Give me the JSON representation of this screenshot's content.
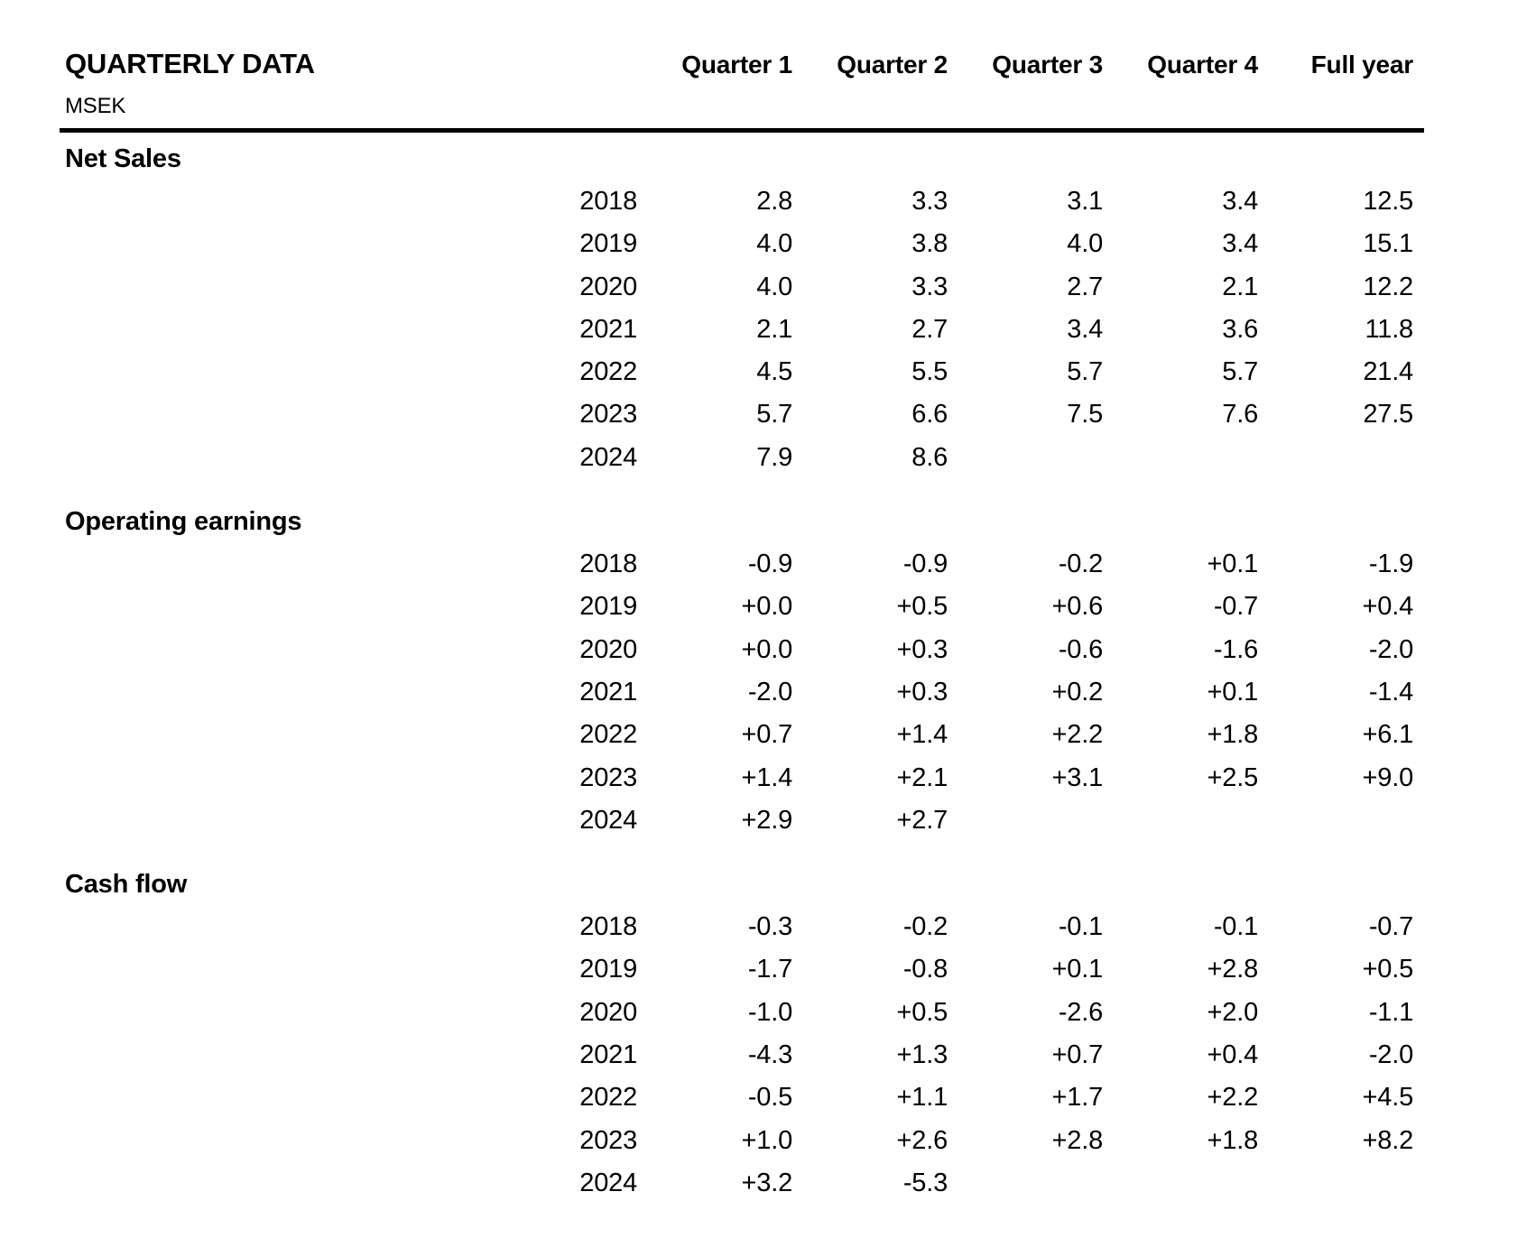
{
  "header": {
    "title": "QUARTERLY DATA",
    "subtitle": "MSEK",
    "columns": [
      "Quarter 1",
      "Quarter 2",
      "Quarter 3",
      "Quarter 4",
      "Full year"
    ]
  },
  "sections": [
    {
      "label": "Net Sales",
      "rows": [
        {
          "year": "2018",
          "values": [
            "2.8",
            "3.3",
            "3.1",
            "3.4",
            "12.5"
          ]
        },
        {
          "year": "2019",
          "values": [
            "4.0",
            "3.8",
            "4.0",
            "3.4",
            "15.1"
          ]
        },
        {
          "year": "2020",
          "values": [
            "4.0",
            "3.3",
            "2.7",
            "2.1",
            "12.2"
          ]
        },
        {
          "year": "2021",
          "values": [
            "2.1",
            "2.7",
            "3.4",
            "3.6",
            "11.8"
          ]
        },
        {
          "year": "2022",
          "values": [
            "4.5",
            "5.5",
            "5.7",
            "5.7",
            "21.4"
          ]
        },
        {
          "year": "2023",
          "values": [
            "5.7",
            "6.6",
            "7.5",
            "7.6",
            "27.5"
          ]
        },
        {
          "year": "2024",
          "values": [
            "7.9",
            "8.6"
          ]
        }
      ]
    },
    {
      "label": "Operating earnings",
      "rows": [
        {
          "year": "2018",
          "values": [
            "-0.9",
            "-0.9",
            "-0.2",
            "+0.1",
            "-1.9"
          ]
        },
        {
          "year": "2019",
          "values": [
            "+0.0",
            "+0.5",
            "+0.6",
            "-0.7",
            "+0.4"
          ]
        },
        {
          "year": "2020",
          "values": [
            "+0.0",
            "+0.3",
            "-0.6",
            "-1.6",
            "-2.0"
          ]
        },
        {
          "year": "2021",
          "values": [
            "-2.0",
            "+0.3",
            "+0.2",
            "+0.1",
            "-1.4"
          ]
        },
        {
          "year": "2022",
          "values": [
            "+0.7",
            "+1.4",
            "+2.2",
            "+1.8",
            "+6.1"
          ]
        },
        {
          "year": "2023",
          "values": [
            "+1.4",
            "+2.1",
            "+3.1",
            "+2.5",
            "+9.0"
          ]
        },
        {
          "year": "2024",
          "values": [
            "+2.9",
            "+2.7"
          ]
        }
      ]
    },
    {
      "label": "Cash flow",
      "rows": [
        {
          "year": "2018",
          "values": [
            "-0.3",
            "-0.2",
            "-0.1",
            "-0.1",
            "-0.7"
          ]
        },
        {
          "year": "2019",
          "values": [
            "-1.7",
            "-0.8",
            "+0.1",
            "+2.8",
            "+0.5"
          ]
        },
        {
          "year": "2020",
          "values": [
            "-1.0",
            "+0.5",
            "-2.6",
            "+2.0",
            "-1.1"
          ]
        },
        {
          "year": "2021",
          "values": [
            "-4.3",
            "+1.3",
            "+0.7",
            "+0.4",
            "-2.0"
          ]
        },
        {
          "year": "2022",
          "values": [
            "-0.5",
            "+1.1",
            "+1.7",
            "+2.2",
            "+4.5"
          ]
        },
        {
          "year": "2023",
          "values": [
            "+1.0",
            "+2.6",
            "+2.8",
            "+1.8",
            "+8.2"
          ]
        },
        {
          "year": "2024",
          "values": [
            "+3.2",
            "-5.3"
          ]
        }
      ]
    }
  ],
  "colors": {
    "text": "#000000",
    "background": "#ffffff",
    "rule": "#000000"
  },
  "chart_data": {
    "type": "table",
    "title": "QUARTERLY DATA",
    "unit": "MSEK",
    "columns": [
      "Quarter 1",
      "Quarter 2",
      "Quarter 3",
      "Quarter 4",
      "Full year"
    ],
    "sections": [
      {
        "name": "Net Sales",
        "years": [
          2018,
          2019,
          2020,
          2021,
          2022,
          2023,
          2024
        ],
        "rows": [
          [
            2.8,
            3.3,
            3.1,
            3.4,
            12.5
          ],
          [
            4.0,
            3.8,
            4.0,
            3.4,
            15.1
          ],
          [
            4.0,
            3.3,
            2.7,
            2.1,
            12.2
          ],
          [
            2.1,
            2.7,
            3.4,
            3.6,
            11.8
          ],
          [
            4.5,
            5.5,
            5.7,
            5.7,
            21.4
          ],
          [
            5.7,
            6.6,
            7.5,
            7.6,
            27.5
          ],
          [
            7.9,
            8.6,
            null,
            null,
            null
          ]
        ]
      },
      {
        "name": "Operating earnings",
        "years": [
          2018,
          2019,
          2020,
          2021,
          2022,
          2023,
          2024
        ],
        "rows": [
          [
            -0.9,
            -0.9,
            -0.2,
            0.1,
            -1.9
          ],
          [
            0.0,
            0.5,
            0.6,
            -0.7,
            0.4
          ],
          [
            0.0,
            0.3,
            -0.6,
            -1.6,
            -2.0
          ],
          [
            -2.0,
            0.3,
            0.2,
            0.1,
            -1.4
          ],
          [
            0.7,
            1.4,
            2.2,
            1.8,
            6.1
          ],
          [
            1.4,
            2.1,
            3.1,
            2.5,
            9.0
          ],
          [
            2.9,
            2.7,
            null,
            null,
            null
          ]
        ]
      },
      {
        "name": "Cash flow",
        "years": [
          2018,
          2019,
          2020,
          2021,
          2022,
          2023,
          2024
        ],
        "rows": [
          [
            -0.3,
            -0.2,
            -0.1,
            -0.1,
            -0.7
          ],
          [
            -1.7,
            -0.8,
            0.1,
            2.8,
            0.5
          ],
          [
            -1.0,
            0.5,
            -2.6,
            2.0,
            -1.1
          ],
          [
            -4.3,
            1.3,
            0.7,
            0.4,
            -2.0
          ],
          [
            -0.5,
            1.1,
            1.7,
            2.2,
            4.5
          ],
          [
            1.0,
            2.6,
            2.8,
            1.8,
            8.2
          ],
          [
            3.2,
            -5.3,
            null,
            null,
            null
          ]
        ]
      }
    ]
  }
}
